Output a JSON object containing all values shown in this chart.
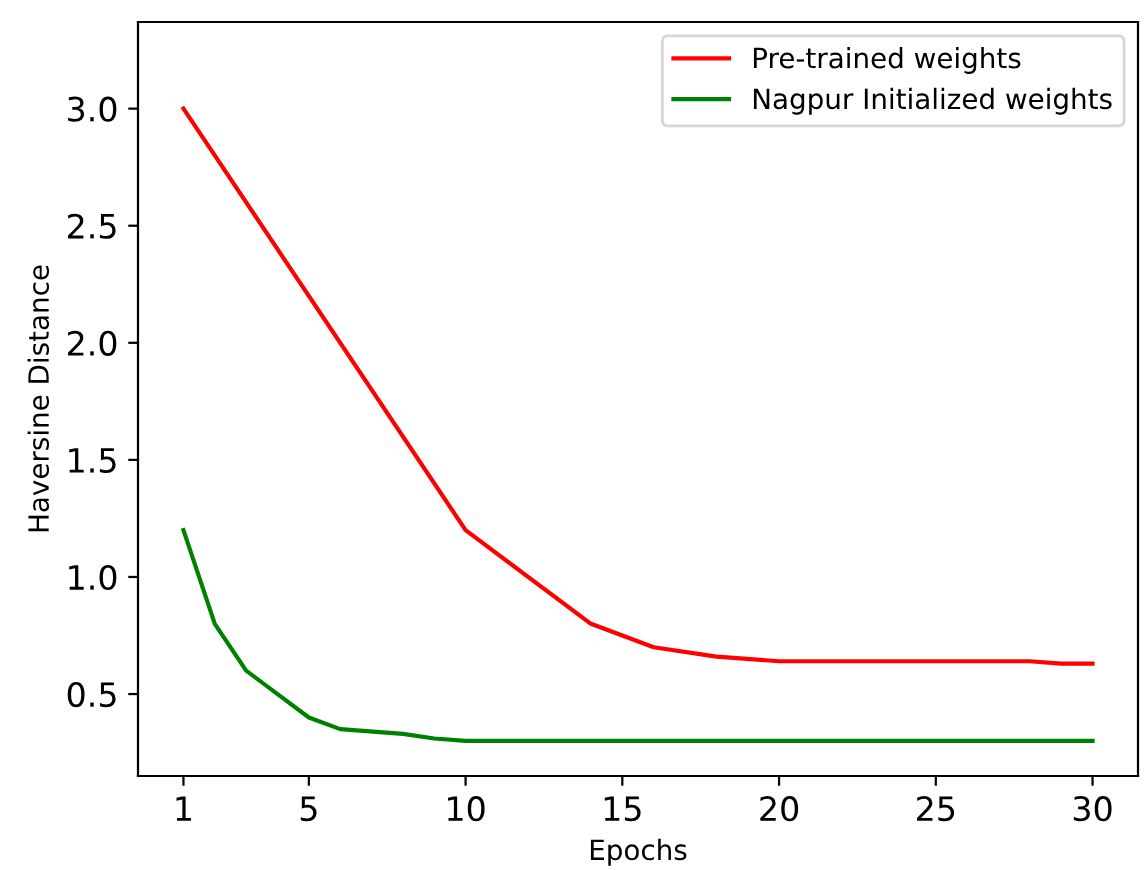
{
  "chart_data": {
    "type": "line",
    "xlabel": "Epochs",
    "ylabel": "Haversine Distance",
    "series": [
      {
        "name": "Pre-trained weights",
        "color": "#ff0000",
        "x": [
          1,
          10,
          14,
          16,
          18,
          20,
          28,
          29,
          30
        ],
        "values": [
          3.0,
          1.2,
          0.8,
          0.7,
          0.66,
          0.64,
          0.64,
          0.63,
          0.63
        ]
      },
      {
        "name": "Nagpur Initialized weights",
        "color": "#008000",
        "x": [
          1,
          2,
          3,
          5,
          6,
          8,
          9,
          10,
          30
        ],
        "values": [
          1.2,
          0.8,
          0.6,
          0.4,
          0.35,
          0.33,
          0.31,
          0.3,
          0.3
        ]
      }
    ],
    "xlim": [
      -0.45,
      31.45
    ],
    "ylim": [
      0.15,
      3.37
    ],
    "xticks": [
      1,
      5,
      10,
      15,
      20,
      25,
      30
    ],
    "yticks": [
      {
        "value": 0.5,
        "label": "0.5"
      },
      {
        "value": 1.0,
        "label": "1.0"
      },
      {
        "value": 1.5,
        "label": "1.5"
      },
      {
        "value": 2.0,
        "label": "2.0"
      },
      {
        "value": 2.5,
        "label": "2.5"
      },
      {
        "value": 3.0,
        "label": "3.0"
      }
    ],
    "legend": "top right",
    "grid": false,
    "marker": "none",
    "line_style": "solid"
  }
}
